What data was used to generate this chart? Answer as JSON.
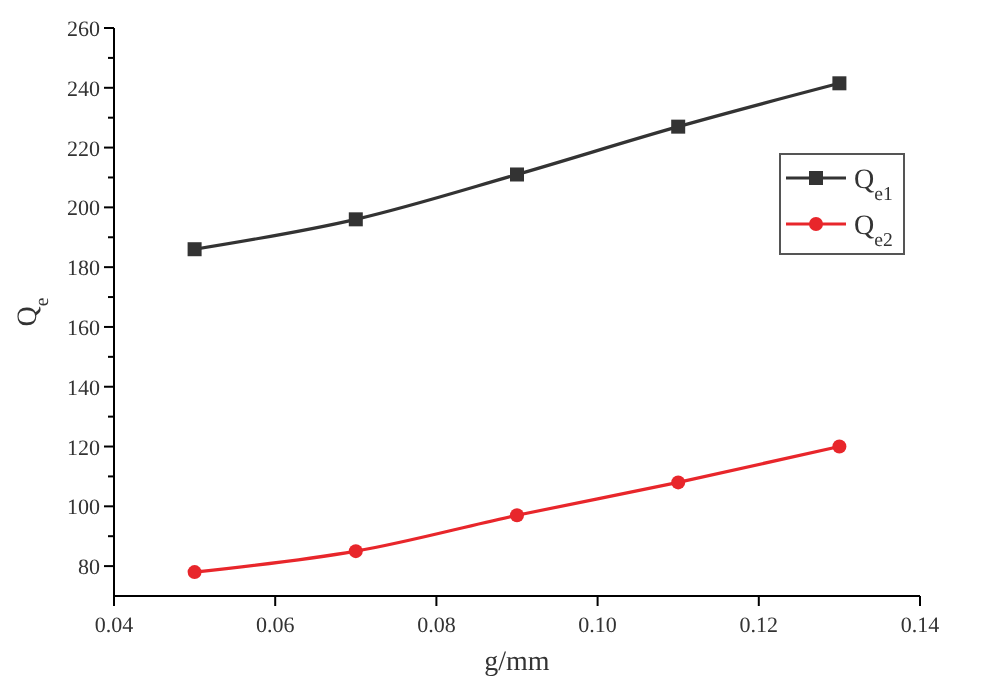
{
  "chart_data": {
    "type": "line",
    "xlabel": "g/mm",
    "ylabel": "Q$_{e}$",
    "x": [
      0.05,
      0.07,
      0.09,
      0.11,
      0.13
    ],
    "series": [
      {
        "name": "Q$_{e1}$",
        "color": "#333333",
        "marker": "square",
        "values": [
          186,
          196,
          211,
          227,
          241.5
        ]
      },
      {
        "name": "Q$_{e2}$",
        "color": "#e8262b",
        "marker": "circle",
        "values": [
          78,
          85,
          97,
          108,
          120
        ]
      }
    ],
    "xlim": [
      0.04,
      0.14
    ],
    "xticks": [
      0.04,
      0.06,
      0.08,
      {
        "value": 0.1,
        "label": "0.10"
      },
      0.12,
      0.14
    ],
    "ylim": [
      70,
      260
    ],
    "yticks": [
      80,
      {
        "value": 90,
        "label": null
      },
      100,
      {
        "value": 110,
        "label": null
      },
      120,
      {
        "value": 130,
        "label": null
      },
      140,
      {
        "value": 150,
        "label": null
      },
      160,
      {
        "value": 170,
        "label": null
      },
      180,
      {
        "value": 190,
        "label": null
      },
      200,
      {
        "value": 210,
        "label": null
      },
      220,
      {
        "value": 230,
        "label": null
      },
      240,
      {
        "value": 250,
        "label": null
      },
      260
    ],
    "grid": false,
    "legend": "right",
    "line_style": "solid"
  }
}
